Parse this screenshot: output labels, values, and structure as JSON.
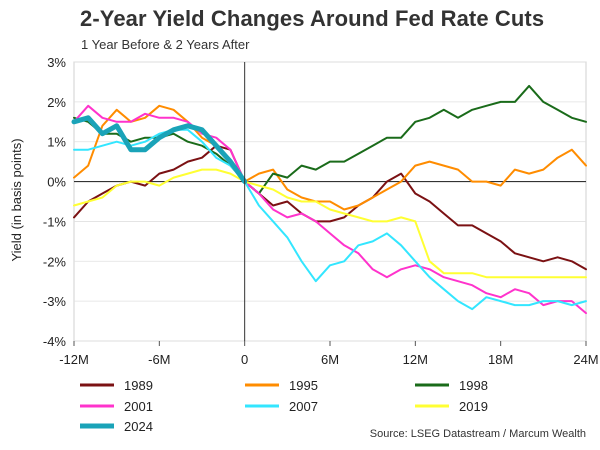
{
  "chart_data": {
    "type": "line",
    "title": "2-Year Yield Changes Around Fed Rate Cuts",
    "subtitle": "1 Year Before & 2 Years After",
    "ylabel": "Yield (in basis points)",
    "xlabel": "",
    "source": "Source: LSEG Datastream / Marcum Wealth",
    "xlim": [
      -12,
      24
    ],
    "ylim": [
      -4,
      3
    ],
    "x_ticks": [
      {
        "value": -12,
        "label": "-12M"
      },
      {
        "value": -6,
        "label": "-6M"
      },
      {
        "value": 0,
        "label": "0"
      },
      {
        "value": 6,
        "label": "6M"
      },
      {
        "value": 12,
        "label": "12M"
      },
      {
        "value": 18,
        "label": "18M"
      },
      {
        "value": 24,
        "label": "24M"
      }
    ],
    "y_ticks": [
      {
        "value": 3,
        "label": "3%"
      },
      {
        "value": 2,
        "label": "2%"
      },
      {
        "value": 1,
        "label": "1%"
      },
      {
        "value": 0,
        "label": "0%"
      },
      {
        "value": -1,
        "label": "-1%"
      },
      {
        "value": -2,
        "label": "-2%"
      },
      {
        "value": -3,
        "label": "-3%"
      },
      {
        "value": -4,
        "label": "-4%"
      }
    ],
    "legend_placement": "bottom",
    "series": [
      {
        "name": "1989",
        "color": "#7b1113",
        "x": [
          -12,
          -11,
          -10,
          -9,
          -8,
          -7,
          -6,
          -5,
          -4,
          -3,
          -2,
          -1,
          0,
          1,
          2,
          3,
          4,
          5,
          6,
          7,
          8,
          9,
          10,
          11,
          12,
          13,
          14,
          15,
          16,
          17,
          18,
          19,
          20,
          21,
          22,
          23,
          24
        ],
        "values": [
          -0.9,
          -0.5,
          -0.3,
          -0.1,
          0.0,
          -0.1,
          0.2,
          0.3,
          0.5,
          0.6,
          0.9,
          0.8,
          0.0,
          -0.3,
          -0.6,
          -0.5,
          -0.8,
          -1.0,
          -1.0,
          -0.9,
          -0.6,
          -0.4,
          0.0,
          0.2,
          -0.3,
          -0.5,
          -0.8,
          -1.1,
          -1.1,
          -1.3,
          -1.5,
          -1.8,
          -1.9,
          -2.0,
          -1.9,
          -2.0,
          -2.2
        ]
      },
      {
        "name": "1995",
        "color": "#ff8c00",
        "x": [
          -12,
          -11,
          -10,
          -9,
          -8,
          -7,
          -6,
          -5,
          -4,
          -3,
          -2,
          -1,
          0,
          1,
          2,
          3,
          4,
          5,
          6,
          7,
          8,
          9,
          10,
          11,
          12,
          13,
          14,
          15,
          16,
          17,
          18,
          19,
          20,
          21,
          22,
          23,
          24
        ],
        "values": [
          0.1,
          0.4,
          1.4,
          1.8,
          1.5,
          1.6,
          1.9,
          1.8,
          1.5,
          1.1,
          0.9,
          0.5,
          0.0,
          0.2,
          0.3,
          -0.2,
          -0.4,
          -0.5,
          -0.5,
          -0.7,
          -0.6,
          -0.4,
          -0.2,
          0.0,
          0.4,
          0.5,
          0.4,
          0.3,
          0.0,
          0.0,
          -0.1,
          0.3,
          0.2,
          0.3,
          0.6,
          0.8,
          0.4
        ]
      },
      {
        "name": "1998",
        "color": "#1a6b1a",
        "x": [
          -12,
          -11,
          -10,
          -9,
          -8,
          -7,
          -6,
          -5,
          -4,
          -3,
          -2,
          -1,
          0,
          1,
          2,
          3,
          4,
          5,
          6,
          7,
          8,
          9,
          10,
          11,
          12,
          13,
          14,
          15,
          16,
          17,
          18,
          19,
          20,
          21,
          22,
          23,
          24
        ],
        "values": [
          1.6,
          1.5,
          1.2,
          1.2,
          1.0,
          1.1,
          1.1,
          1.2,
          1.0,
          0.9,
          0.7,
          0.4,
          0.0,
          -0.3,
          0.2,
          0.1,
          0.4,
          0.3,
          0.5,
          0.5,
          0.7,
          0.9,
          1.1,
          1.1,
          1.5,
          1.6,
          1.8,
          1.6,
          1.8,
          1.9,
          2.0,
          2.0,
          2.4,
          2.0,
          1.8,
          1.6,
          1.5
        ]
      },
      {
        "name": "2001",
        "color": "#ff33cc",
        "x": [
          -12,
          -11,
          -10,
          -9,
          -8,
          -7,
          -6,
          -5,
          -4,
          -3,
          -2,
          -1,
          0,
          1,
          2,
          3,
          4,
          5,
          6,
          7,
          8,
          9,
          10,
          11,
          12,
          13,
          14,
          15,
          16,
          17,
          18,
          19,
          20,
          21,
          22,
          23,
          24
        ],
        "values": [
          1.5,
          1.9,
          1.6,
          1.5,
          1.5,
          1.7,
          1.6,
          1.6,
          1.5,
          1.2,
          1.1,
          0.8,
          0.0,
          -0.3,
          -0.7,
          -0.9,
          -0.8,
          -1.0,
          -1.3,
          -1.6,
          -1.8,
          -2.2,
          -2.4,
          -2.2,
          -2.1,
          -2.2,
          -2.4,
          -2.5,
          -2.6,
          -2.8,
          -2.9,
          -2.7,
          -2.8,
          -3.1,
          -3.0,
          -3.0,
          -3.3
        ]
      },
      {
        "name": "2007",
        "color": "#33e6ff",
        "x": [
          -12,
          -11,
          -10,
          -9,
          -8,
          -7,
          -6,
          -5,
          -4,
          -3,
          -2,
          -1,
          0,
          1,
          2,
          3,
          4,
          5,
          6,
          7,
          8,
          9,
          10,
          11,
          12,
          13,
          14,
          15,
          16,
          17,
          18,
          19,
          20,
          21,
          22,
          23,
          24
        ],
        "values": [
          0.8,
          0.8,
          0.9,
          1.0,
          0.9,
          1.0,
          1.2,
          1.3,
          1.3,
          1.0,
          0.6,
          0.4,
          0.0,
          -0.6,
          -1.0,
          -1.4,
          -2.0,
          -2.5,
          -2.1,
          -2.0,
          -1.6,
          -1.5,
          -1.3,
          -1.6,
          -2.0,
          -2.4,
          -2.7,
          -3.0,
          -3.2,
          -2.9,
          -3.0,
          -3.1,
          -3.1,
          -3.0,
          -3.0,
          -3.1,
          -3.0
        ]
      },
      {
        "name": "2019",
        "color": "#ffff33",
        "x": [
          -12,
          -11,
          -10,
          -9,
          -8,
          -7,
          -6,
          -5,
          -4,
          -3,
          -2,
          -1,
          0,
          1,
          2,
          3,
          4,
          5,
          6,
          7,
          8,
          9,
          10,
          11,
          12,
          13,
          14,
          15,
          16,
          17,
          18,
          19,
          20,
          21,
          22,
          23,
          24
        ],
        "values": [
          -0.6,
          -0.5,
          -0.4,
          -0.1,
          0.0,
          0.0,
          -0.1,
          0.1,
          0.2,
          0.3,
          0.3,
          0.2,
          0.0,
          -0.1,
          -0.2,
          -0.4,
          -0.5,
          -0.5,
          -0.7,
          -0.8,
          -0.9,
          -1.0,
          -1.0,
          -0.9,
          -1.0,
          -2.0,
          -2.3,
          -2.3,
          -2.3,
          -2.4,
          -2.4,
          -2.4,
          -2.4,
          -2.4,
          -2.4,
          -2.4,
          -2.4
        ]
      },
      {
        "name": "2024",
        "color": "#1aa3b8",
        "thick": true,
        "x": [
          -12,
          -11,
          -10,
          -9,
          -8,
          -7,
          -6,
          -5,
          -4,
          -3,
          -2,
          -1,
          0
        ],
        "values": [
          1.5,
          1.6,
          1.2,
          1.4,
          0.8,
          0.8,
          1.1,
          1.3,
          1.4,
          1.3,
          0.9,
          0.5,
          0.0
        ]
      }
    ]
  }
}
